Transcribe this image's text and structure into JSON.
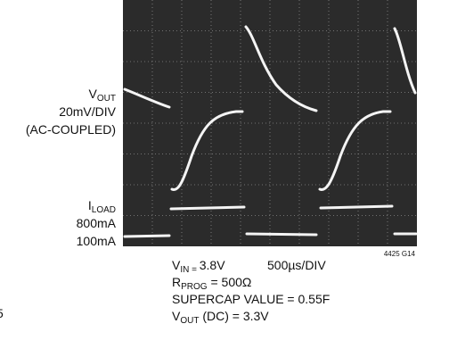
{
  "figure": {
    "vout_label": {
      "main": "V",
      "sub": "OUT"
    },
    "vout_scale": "20mV/DIV",
    "vout_coupling": "(AC-COUPLED)",
    "iload_label": {
      "main": "I",
      "sub": "LOAD"
    },
    "iload_high": "800mA",
    "iload_low": "100mA",
    "vin": {
      "main": "V",
      "sub": "IN = ",
      "rest": "3.8V"
    },
    "time_scale": "500µs/DIV",
    "rprog": {
      "main": "R",
      "sub": "PROG",
      "rest": " = 500Ω"
    },
    "supercap": "SUPERCAP VALUE = 0.55F",
    "vout_dc": {
      "main": "V",
      "sub": "OUT",
      "rest": " (DC) = 3.3V"
    },
    "figure_id": "4425 G14",
    "edge_text": "5"
  }
}
